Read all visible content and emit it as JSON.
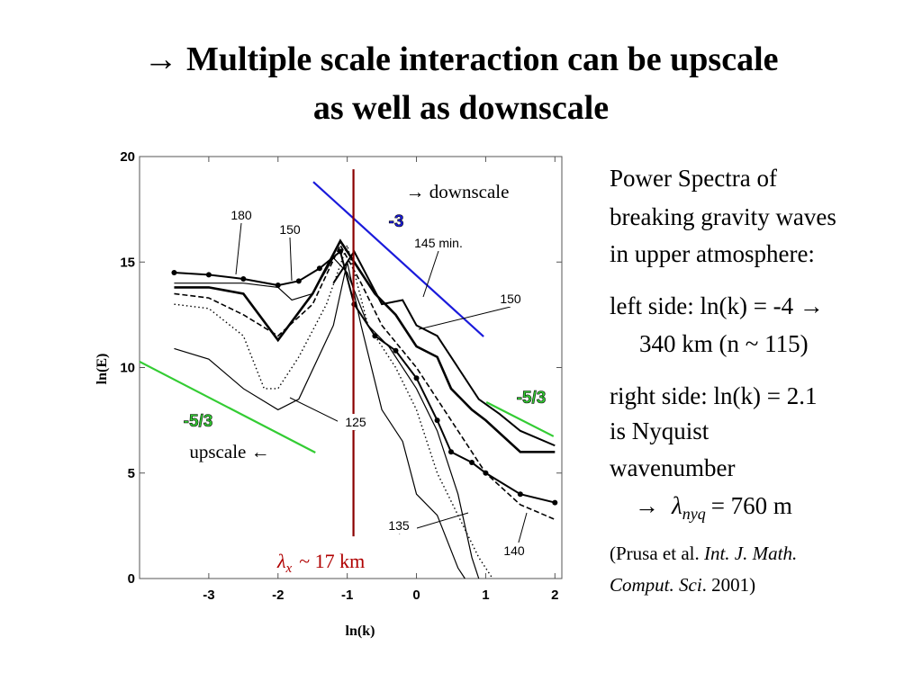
{
  "slide": {
    "title_lines": [
      "→ Multiple scale interaction can be upscale",
      "as well as downscale"
    ],
    "notes": [
      "Power Spectra of",
      "breaking gravity waves",
      "in upper atmosphere:",
      "left side: ln(k) = -4 →",
      "340 km (n ~ 115)",
      "right side: ln(k) = 2.1",
      "is Nyquist",
      "wavenumber"
    ],
    "nyquist": {
      "arrow": "→",
      "symbol": "λ",
      "subscript": "nyq",
      "text": "= 760 m"
    },
    "citation": {
      "open": "(Prusa et al. ",
      "journal1": "Int. J. Math.",
      "journal2": "Comput. Sci",
      "close": ". 2001)"
    }
  },
  "chart_data": {
    "type": "line",
    "xlabel": "ln(k)",
    "ylabel": "ln(E)",
    "xlim": [
      -4,
      2.1
    ],
    "ylim": [
      0,
      20
    ],
    "xticks": [
      -3,
      -2,
      -1,
      0,
      1,
      2
    ],
    "yticks": [
      0,
      5,
      10,
      15,
      20
    ],
    "series": [
      {
        "name": "180",
        "color": "#000",
        "style": "dots",
        "x": [
          -3.5,
          -3,
          -2.5,
          -2,
          -1.7,
          -1.4,
          -1.1,
          -0.9,
          -0.6,
          -0.3,
          0,
          0.3,
          0.5,
          0.8,
          1,
          1.5,
          2
        ],
        "values": [
          14.5,
          14.4,
          14.2,
          13.9,
          14.1,
          14.7,
          15.5,
          13,
          11.5,
          10.8,
          9.5,
          7.5,
          6,
          5.5,
          5,
          4,
          3.6
        ]
      },
      {
        "name": "150",
        "color": "#000",
        "style": "thin",
        "x": [
          -3.5,
          -3,
          -2.5,
          -2,
          -1.8,
          -1.5,
          -1.2,
          -1,
          -0.7,
          -0.4,
          0,
          0.3,
          0.6,
          0.8,
          0.9
        ],
        "values": [
          14,
          14,
          14,
          13.8,
          13.2,
          13.5,
          15.2,
          14.5,
          12,
          11,
          9,
          7,
          4,
          1,
          0
        ]
      },
      {
        "name": "145 min.",
        "color": "#000",
        "style": "thick",
        "x": [
          -3.5,
          -3,
          -2.5,
          -2,
          -1.5,
          -1.1,
          -0.8,
          -0.6,
          -0.3,
          0,
          0.3,
          0.5,
          0.8,
          1,
          1.5,
          2
        ],
        "values": [
          13.8,
          13.8,
          13.5,
          11.3,
          13.5,
          16,
          14.5,
          13.5,
          12.5,
          11,
          10.5,
          9,
          8,
          7.5,
          6,
          6
        ]
      },
      {
        "name": "150",
        "color": "#000",
        "style": "solid",
        "x": [
          -1.2,
          -0.9,
          -0.5,
          -0.2,
          0,
          0.3,
          0.6,
          0.9,
          1.2,
          1.5,
          2
        ],
        "values": [
          14,
          15.5,
          13,
          13.2,
          12,
          11.5,
          10,
          8.5,
          7.8,
          7,
          6.3
        ]
      },
      {
        "name": "125",
        "color": "#000",
        "style": "thin",
        "x": [
          -3.5,
          -3,
          -2.5,
          -2,
          -1.7,
          -1.2,
          -1,
          -0.8,
          -0.5,
          -0.2,
          0,
          0.3,
          0.6,
          0.7
        ],
        "values": [
          10.9,
          10.4,
          9,
          8,
          8.5,
          12,
          15,
          12,
          8,
          6.5,
          4,
          3,
          0.5,
          0
        ]
      },
      {
        "name": "135",
        "color": "#000",
        "style": "dotted",
        "x": [
          -3.5,
          -3,
          -2.5,
          -2.2,
          -2,
          -1.7,
          -1.3,
          -1,
          -0.7,
          -0.3,
          0,
          0.3,
          0.6,
          0.9,
          1.1
        ],
        "values": [
          13,
          12.8,
          11.5,
          9,
          9,
          10.5,
          13,
          15.8,
          12,
          10,
          8,
          5,
          3,
          1,
          0
        ]
      },
      {
        "name": "140",
        "color": "#000",
        "style": "dashed",
        "x": [
          -3.5,
          -3,
          -2.5,
          -2,
          -1.5,
          -1.1,
          -0.8,
          -0.5,
          0,
          0.4,
          0.8,
          1,
          1.5,
          2
        ],
        "values": [
          13.5,
          13.3,
          12.5,
          11.5,
          13,
          15.8,
          14,
          12,
          10,
          8,
          6,
          5,
          3.5,
          2.8
        ]
      }
    ],
    "reference_lines": [
      {
        "label": "-3",
        "color": "#1a1adb",
        "x": [
          -1.49,
          0.97
        ],
        "values": [
          18.8,
          11.47
        ]
      },
      {
        "label": "-5/3",
        "color": "#33cc33",
        "x": [
          -4,
          -1.46
        ],
        "values": [
          10.28,
          5.97
        ]
      },
      {
        "label": "-5/3",
        "color": "#33cc33",
        "x": [
          1.01,
          1.98
        ],
        "values": [
          8.36,
          6.74
        ]
      },
      {
        "color": "#8b0000",
        "x": [
          -0.91,
          -0.91
        ],
        "values": [
          19.4,
          2
        ]
      }
    ],
    "annotations": [
      "→ downscale",
      "upscale ←"
    ],
    "lambda_label": {
      "symbol": "λ",
      "subscript": "x",
      "text": "~ 17 km",
      "color": "#b00000"
    }
  }
}
